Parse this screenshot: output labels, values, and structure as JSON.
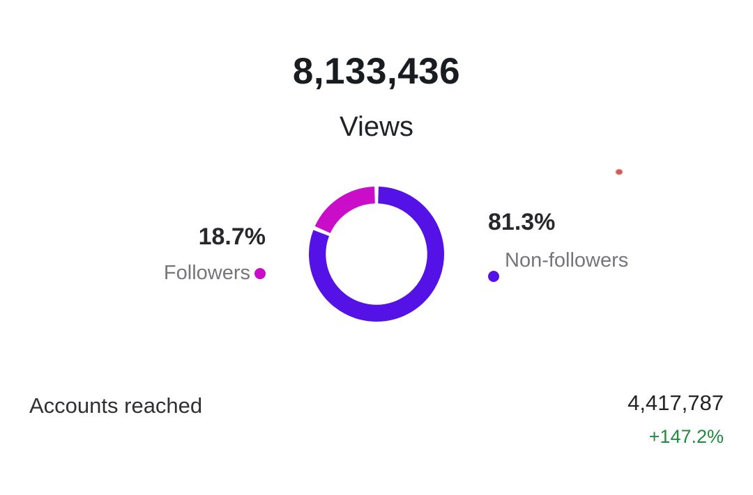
{
  "header": {
    "views_value": "8,133,436",
    "views_label": "Views"
  },
  "chart_data": {
    "type": "pie",
    "subtype": "donut",
    "categories": [
      "Non-followers",
      "Followers"
    ],
    "values": [
      81.3,
      18.7
    ],
    "unit": "%",
    "slices": [
      {
        "label": "Non-followers",
        "percent": 81.3,
        "display": "81.3%",
        "color": "#5512E6"
      },
      {
        "label": "Followers",
        "percent": 18.7,
        "display": "18.7%",
        "color": "#C90DC8"
      }
    ],
    "start_angle_deg": 0,
    "clockwise": true,
    "gap_deg": 3.5,
    "inner_radius_ratio": 0.75,
    "legend": {
      "position": "sides",
      "left": {
        "value": "18.7%",
        "label": "Followers",
        "dot_color": "#C90DC8"
      },
      "right": {
        "value": "81.3%",
        "label": "Non-followers",
        "dot_color": "#5512E6"
      }
    }
  },
  "footer": {
    "metric_label": "Accounts reached",
    "metric_value": "4,417,787",
    "metric_delta": "+147.2%",
    "delta_color": "#1E8B3E"
  },
  "artifact": {
    "red_dot_color": "#C5403F"
  }
}
